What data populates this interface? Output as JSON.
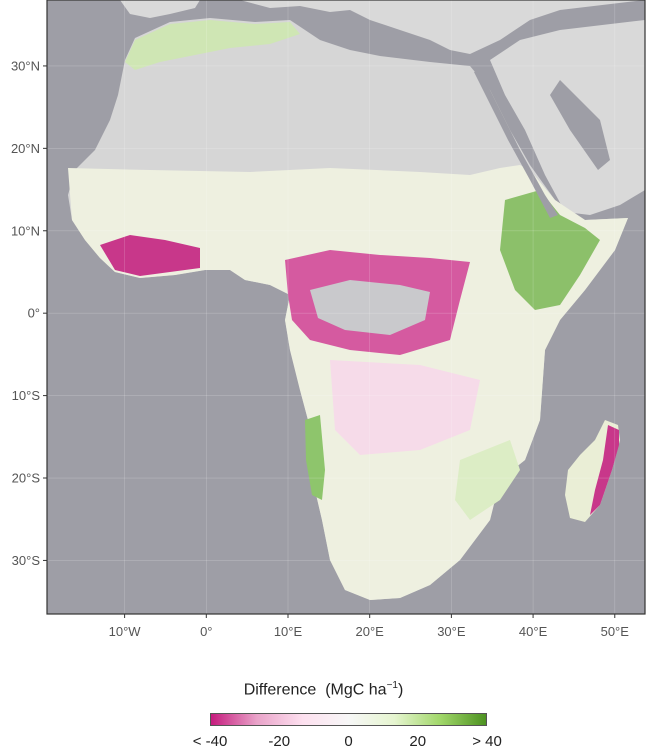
{
  "axes": {
    "lat_labels": [
      {
        "value": 30,
        "label": "30°N"
      },
      {
        "value": 20,
        "label": "20°N"
      },
      {
        "value": 10,
        "label": "10°N"
      },
      {
        "value": 0,
        "label": "0°"
      },
      {
        "value": -10,
        "label": "10°S"
      },
      {
        "value": -20,
        "label": "20°S"
      },
      {
        "value": -30,
        "label": "30°S"
      }
    ],
    "lon_labels": [
      {
        "value": -10,
        "label": "10°W"
      },
      {
        "value": 0,
        "label": "0°"
      },
      {
        "value": 10,
        "label": "10°E"
      },
      {
        "value": 20,
        "label": "20°E"
      },
      {
        "value": 30,
        "label": "30°E"
      },
      {
        "value": 40,
        "label": "40°E"
      },
      {
        "value": 50,
        "label": "50°E"
      }
    ],
    "lon_range": [
      -19.5,
      53.7
    ],
    "lat_range": [
      -36.5,
      38.0
    ],
    "grid": true
  },
  "legend": {
    "title_prefix": "Difference",
    "title_unit": "(MgC ha",
    "title_sup": "−1",
    "title_close": ")",
    "ticks": [
      "< -40",
      "-20",
      "0",
      "20",
      "> 40"
    ],
    "colors": [
      "#c51b7d",
      "#e9a3c9",
      "#fde0ef",
      "#f7f7f7",
      "#e6f5d0",
      "#a1d76a",
      "#4d9221"
    ]
  },
  "colors": {
    "ocean": "#9e9ea6",
    "land_other": "#d9d9d9",
    "desert": "#d6d6d6",
    "neutral": "#eef0e0"
  }
}
